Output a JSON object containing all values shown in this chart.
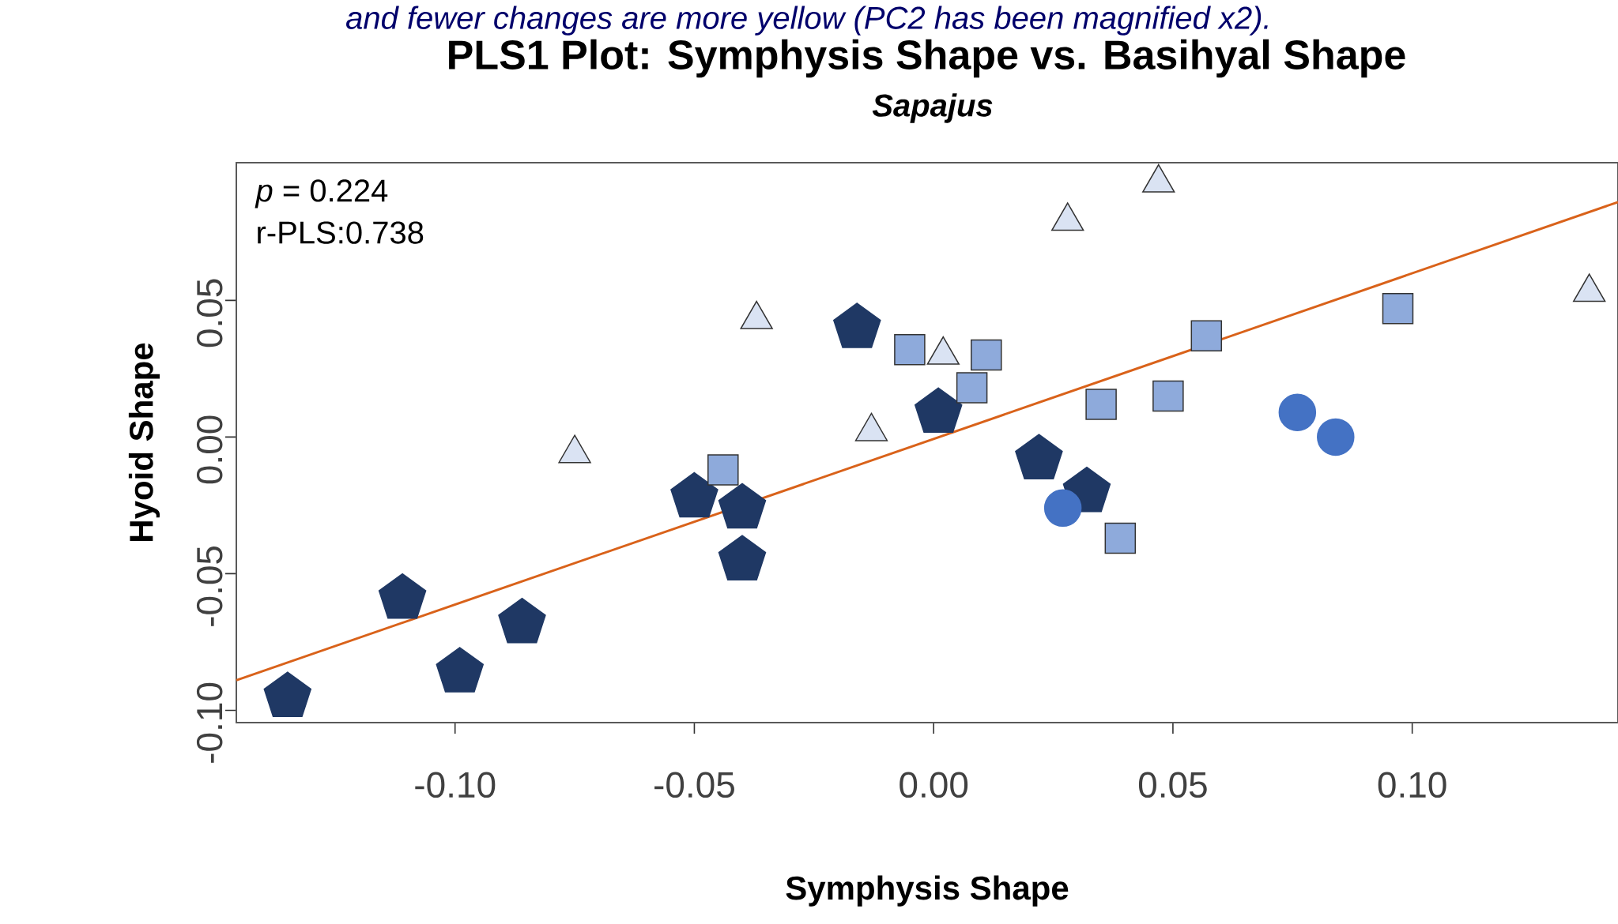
{
  "chart_data": {
    "type": "scatter",
    "title": "PLS1 Plot: Symphysis Shape vs. Basihyal Shape",
    "subtitle": "Sapajus",
    "xlabel": "Symphysis Shape",
    "ylabel": "Hyoid Shape",
    "annotations": [
      "and fewer changes are more yellow (PC2 has been magnified x2).",
      "*p* = 0.224",
      "r-PLS:0.738"
    ],
    "xlim": [
      -0.1457,
      0.143
    ],
    "ylim": [
      -0.1045,
      0.1004
    ],
    "xticks": [
      {
        "value": -0.1,
        "label": "-0.10"
      },
      {
        "value": -0.05,
        "label": "-0.05"
      },
      {
        "value": 0,
        "label": "0.00"
      },
      {
        "value": 0.05,
        "label": "0.05"
      },
      {
        "value": 0.1,
        "label": "0.10"
      }
    ],
    "yticks": [
      {
        "value": -0.1,
        "label": "-0.10"
      },
      {
        "value": -0.05,
        "label": "-0.05"
      },
      {
        "value": 0,
        "label": "0.00"
      },
      {
        "value": 0.05,
        "label": "0.05"
      }
    ],
    "series": [
      {
        "color": "#1f3864",
        "x": [
          -0.135,
          -0.111,
          -0.099,
          -0.086,
          -0.05,
          -0.04,
          -0.04,
          -0.016,
          0.001,
          0.022,
          0.032
        ],
        "values": [
          -0.095,
          -0.059,
          -0.086,
          -0.068,
          -0.022,
          -0.026,
          -0.045,
          0.04,
          0.009,
          -0.008,
          -0.02
        ]
      },
      {
        "color": "#8eaadb",
        "marker": "square",
        "x": [
          -0.044,
          -0.005,
          0.011,
          0.008,
          0.035,
          0.049,
          0.057,
          0.039,
          0.097
        ],
        "values": [
          -0.012,
          0.032,
          0.03,
          0.018,
          0.012,
          0.015,
          0.037,
          -0.037,
          0.047
        ]
      },
      {
        "color": "#dae3f3",
        "marker": "triangle",
        "x": [
          -0.075,
          -0.037,
          0.028,
          0.047,
          0.002,
          -0.013,
          0.137
        ],
        "values": [
          -0.006,
          0.043,
          0.079,
          0.093,
          0.03,
          0.002,
          0.053
        ]
      },
      {
        "color": "#4472c4",
        "marker": "circle",
        "x": [
          0.027,
          0.076,
          0.084
        ],
        "values": [
          -0.026,
          0.009,
          0.0
        ]
      },
      {
        "type": "line",
        "color": "#d9621a",
        "marker": "none",
        "x": [
          -0.1457,
          0.143
        ],
        "values": [
          -0.089,
          0.086
        ]
      }
    ]
  }
}
